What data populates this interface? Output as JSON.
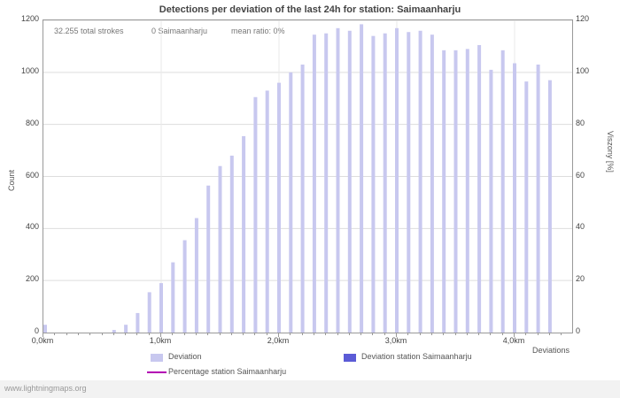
{
  "page": {
    "title": "Detections per deviation of the last 24h for station: Saimaanharju",
    "footer": "www.lightningmaps.org"
  },
  "annotations": {
    "total_strokes": "32.255 total strokes",
    "station_count": "0 Saimaanharju",
    "mean_ratio": "mean ratio: 0%"
  },
  "axes": {
    "left_label": "Count",
    "right_label": "Viszony [%]",
    "x_label": "Deviations",
    "left_ticks": [
      0,
      200,
      400,
      600,
      800,
      1000,
      1200
    ],
    "right_ticks": [
      0,
      20,
      40,
      60,
      80,
      100,
      120
    ],
    "x_ticks": [
      "0,0km",
      "1,0km",
      "2,0km",
      "3,0km",
      "4,0km"
    ]
  },
  "legend": {
    "deviation": "Deviation",
    "deviation_station": "Deviation station Saimaanharju",
    "percentage_station": "Percentage station Saimaanharju"
  },
  "chart_data": {
    "type": "bar",
    "title": "Detections per deviation of the last 24h for station: Saimaanharju",
    "xlabel": "Deviations",
    "ylabel_left": "Count",
    "ylabel_right": "Viszony [%]",
    "ylim_left": [
      0,
      1200
    ],
    "ylim_right": [
      0,
      120
    ],
    "x_unit": "km",
    "x_km": [
      0.0,
      0.1,
      0.2,
      0.3,
      0.4,
      0.5,
      0.6,
      0.7,
      0.8,
      0.9,
      1.0,
      1.1,
      1.2,
      1.3,
      1.4,
      1.5,
      1.6,
      1.7,
      1.8,
      1.9,
      2.0,
      2.1,
      2.2,
      2.3,
      2.4,
      2.5,
      2.6,
      2.7,
      2.8,
      2.9,
      3.0,
      3.1,
      3.2,
      3.3,
      3.4,
      3.5,
      3.6,
      3.7,
      3.8,
      3.9,
      4.0,
      4.1,
      4.2,
      4.3
    ],
    "values": [
      30,
      0,
      0,
      0,
      0,
      0,
      10,
      30,
      75,
      155,
      190,
      270,
      355,
      440,
      565,
      640,
      680,
      755,
      905,
      930,
      960,
      1000,
      1030,
      1145,
      1150,
      1170,
      1160,
      1185,
      1140,
      1150,
      1170,
      1155,
      1160,
      1145,
      1085,
      1085,
      1090,
      1105,
      1010,
      1085,
      1035,
      965,
      1030,
      970
    ],
    "grid": true,
    "legend_position": "bottom",
    "colors": {
      "bar": "#c8c8ef",
      "station_bar": "#5b5bd6",
      "percentage_line": "#b300b3",
      "grid_line": "#dddddd",
      "axis": "#999999"
    }
  }
}
